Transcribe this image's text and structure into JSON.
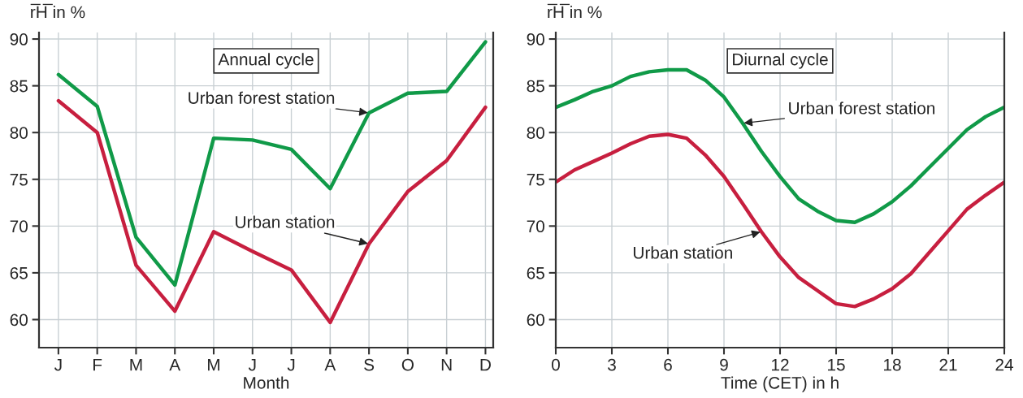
{
  "chart_data": [
    {
      "type": "line",
      "title": "Annual cycle",
      "xlabel": "Month",
      "ylabel": "r̅H̅ in %",
      "categories": [
        "J",
        "F",
        "M",
        "A",
        "M",
        "J",
        "J",
        "A",
        "S",
        "O",
        "N",
        "D"
      ],
      "series": [
        {
          "name": "Urban forest station",
          "color": "#109a48",
          "values": [
            86.2,
            82.8,
            68.8,
            63.7,
            79.4,
            79.2,
            78.2,
            74.0,
            82.1,
            84.2,
            84.4,
            89.7
          ]
        },
        {
          "name": "Urban station",
          "color": "#c71f3f",
          "values": [
            83.4,
            80.0,
            65.8,
            60.9,
            69.4,
            67.3,
            65.3,
            59.7,
            68.1,
            73.7,
            77.0,
            82.7
          ]
        }
      ],
      "ylim": [
        57,
        90.7
      ],
      "yticks": [
        60,
        65,
        70,
        75,
        80,
        85,
        90
      ],
      "grid": true,
      "legend": false,
      "marker": "none",
      "line_style": "solid"
    },
    {
      "type": "line",
      "title": "Diurnal cycle",
      "xlabel": "Time (CET) in h",
      "ylabel": "r̅H̅ in %",
      "x": [
        0,
        1,
        2,
        3,
        4,
        5,
        6,
        7,
        8,
        9,
        10,
        11,
        12,
        13,
        14,
        15,
        16,
        17,
        18,
        19,
        20,
        21,
        22,
        23,
        24
      ],
      "series": [
        {
          "name": "Urban forest station",
          "color": "#109a48",
          "values": [
            82.7,
            83.5,
            84.4,
            85.0,
            86.0,
            86.5,
            86.7,
            86.7,
            85.6,
            83.8,
            81.0,
            78.0,
            75.3,
            72.9,
            71.6,
            70.6,
            70.4,
            71.3,
            72.6,
            74.3,
            76.3,
            78.3,
            80.3,
            81.7,
            82.7
          ]
        },
        {
          "name": "Urban station",
          "color": "#c71f3f",
          "values": [
            74.7,
            76.0,
            76.9,
            77.8,
            78.8,
            79.6,
            79.8,
            79.4,
            77.6,
            75.3,
            72.4,
            69.4,
            66.7,
            64.5,
            63.1,
            61.7,
            61.4,
            62.2,
            63.3,
            64.9,
            67.2,
            69.5,
            71.8,
            73.3,
            74.7
          ]
        }
      ],
      "xlim": [
        0,
        24
      ],
      "xticks": [
        0,
        3,
        6,
        9,
        12,
        15,
        18,
        21,
        24
      ],
      "ylim": [
        57,
        90.7
      ],
      "yticks": [
        60,
        65,
        70,
        75,
        80,
        85,
        90
      ],
      "grid": true,
      "legend": false,
      "marker": "none",
      "line_style": "solid"
    }
  ]
}
